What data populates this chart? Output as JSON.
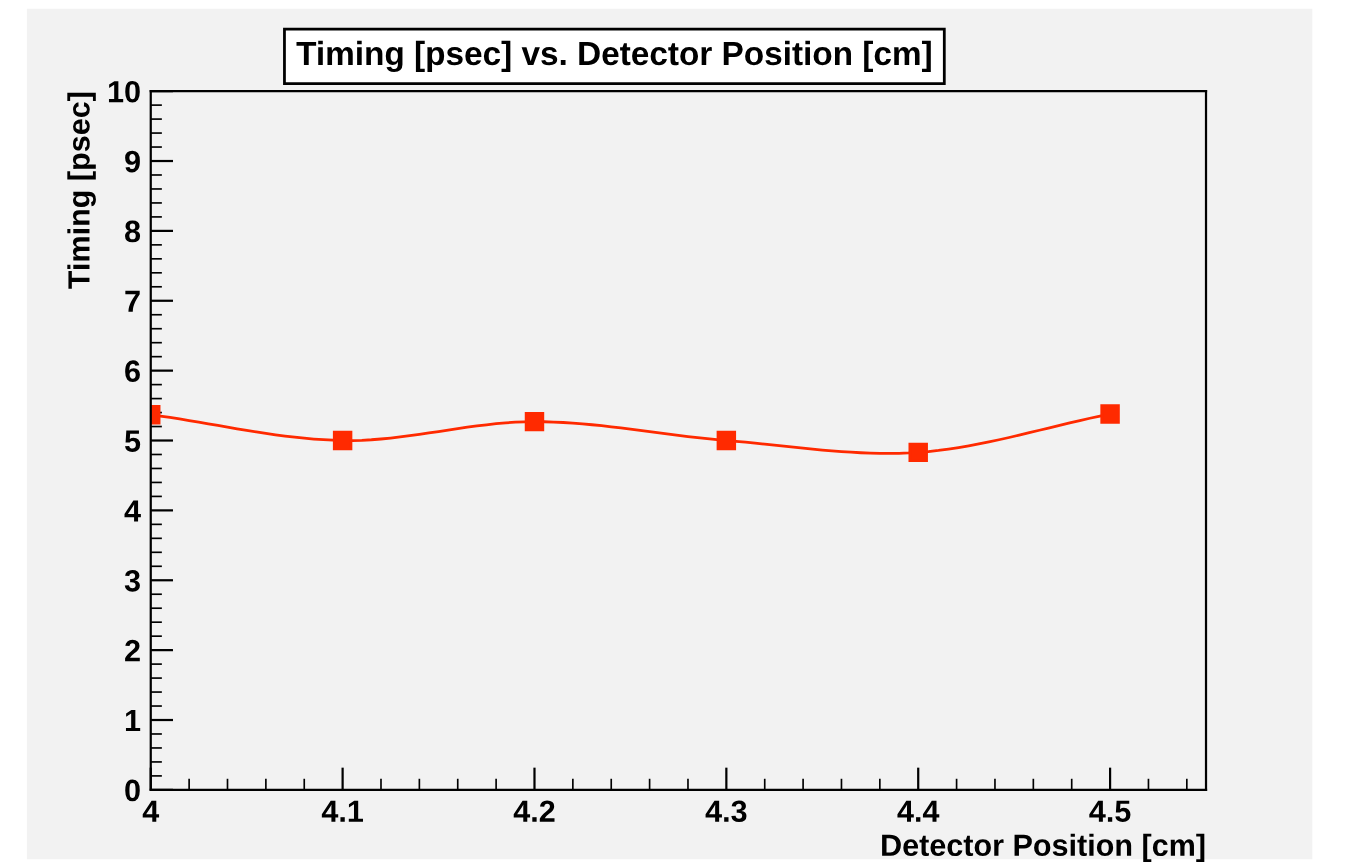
{
  "chart_data": {
    "type": "line",
    "title": "Timing [psec] vs. Detector Position [cm]",
    "xlabel": "Detector Position [cm]",
    "ylabel": "Timing [psec]",
    "x": [
      4.0,
      4.1,
      4.2,
      4.3,
      4.4,
      4.5
    ],
    "series": [
      {
        "color": "#ff2a00",
        "values": [
          5.37,
          5.0,
          5.27,
          5.0,
          4.83,
          5.38
        ]
      }
    ],
    "marker": "square",
    "line_style": "solid",
    "grid": false,
    "legend": false,
    "xlim": [
      4.0,
      4.55
    ],
    "xticks": [
      4,
      4.1,
      4.2,
      4.3,
      4.4,
      4.5
    ],
    "ylim": [
      0,
      10
    ],
    "yticks": [
      0,
      1,
      2,
      3,
      4,
      5,
      6,
      7,
      8,
      9,
      10
    ]
  }
}
